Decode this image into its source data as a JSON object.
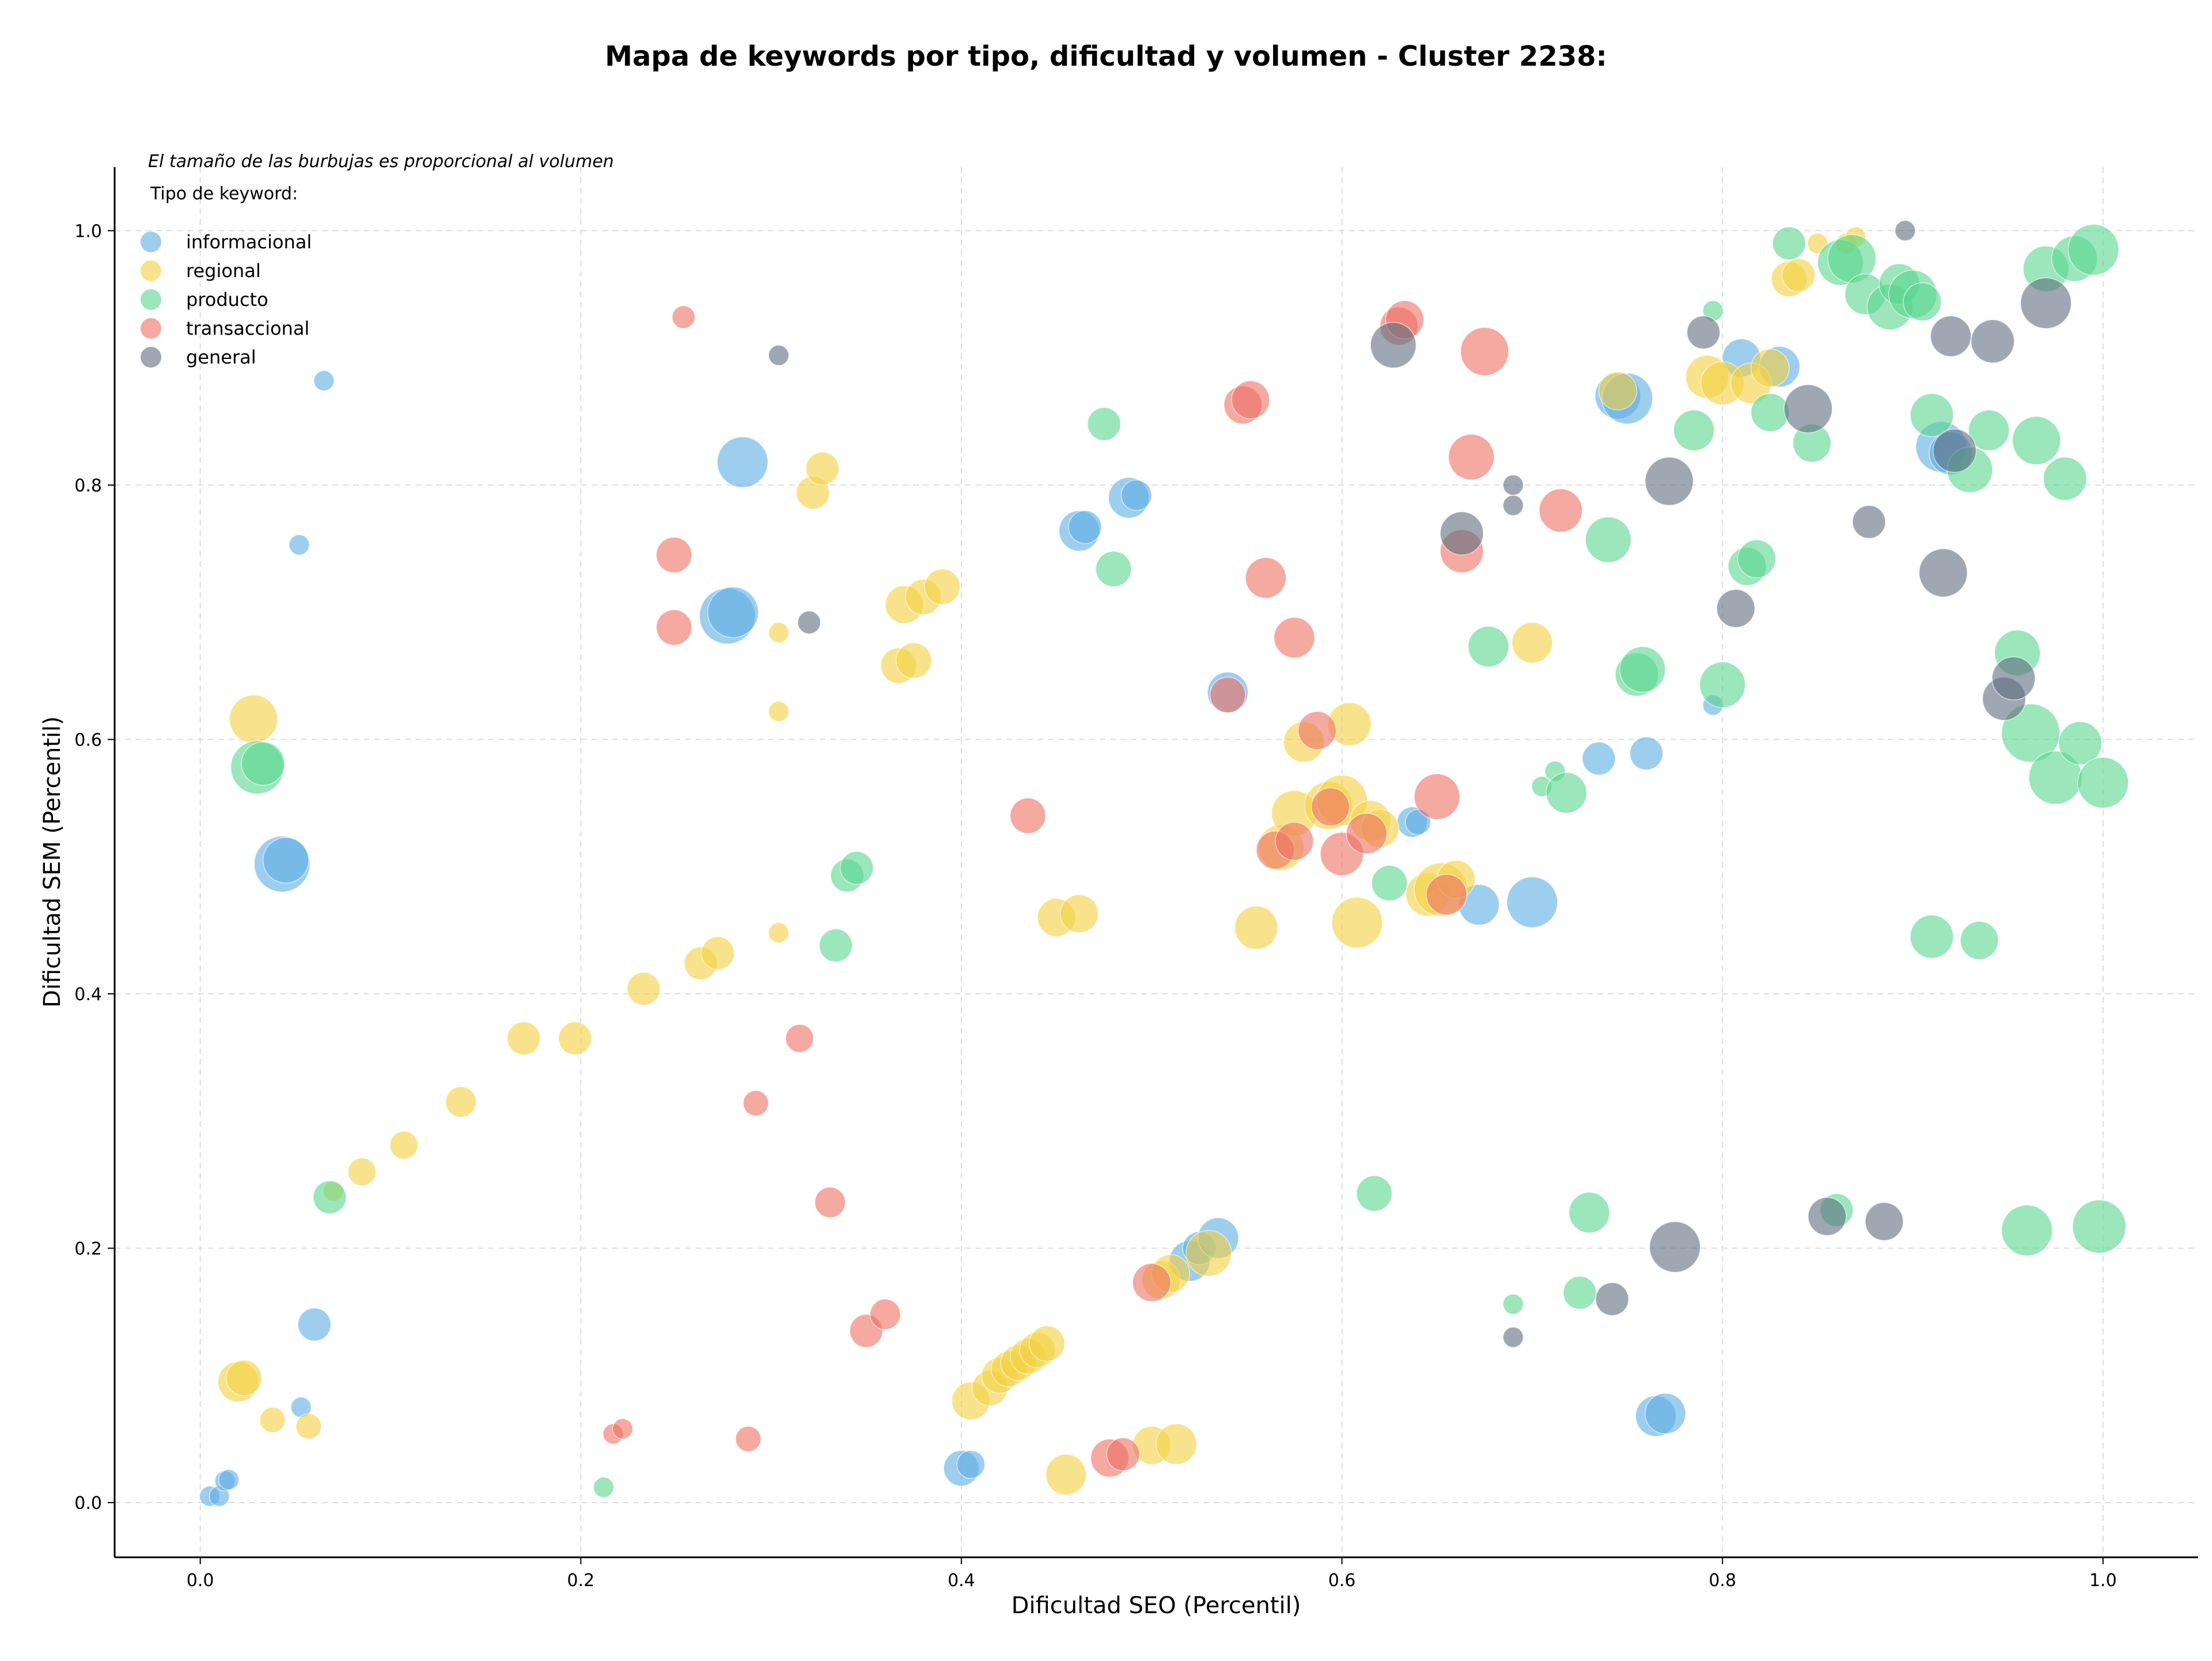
{
  "chart_data": {
    "type": "scatter",
    "title": "Mapa de keywords por tipo, dificultad y volumen - Cluster 2238:",
    "xlabel": "Dificultad SEO (Percentil)",
    "ylabel": "Dificultad SEM (Percentil)",
    "xlim": [
      -0.045,
      1.05
    ],
    "ylim": [
      -0.043,
      1.05
    ],
    "xticks": [
      0.0,
      0.2,
      0.4,
      0.6,
      0.8,
      1.0
    ],
    "yticks": [
      0.0,
      0.2,
      0.4,
      0.6,
      0.8,
      1.0
    ],
    "xtick_labels": [
      "0.0",
      "0.2",
      "0.4",
      "0.6",
      "0.8",
      "1.0"
    ],
    "ytick_labels": [
      "0.0",
      "0.2",
      "0.4",
      "0.6",
      "0.8",
      "1.0"
    ],
    "grid": true,
    "size_note": "El tamaño de las burbujas es proporcional al volumen",
    "legend_title": "Tipo de keyword:",
    "legend_position": "top-left",
    "series": [
      {
        "name": "informacional",
        "color": "#5DADE2",
        "points": [
          [
            0.005,
            0.005,
            8
          ],
          [
            0.01,
            0.005,
            8
          ],
          [
            0.013,
            0.017,
            8
          ],
          [
            0.015,
            0.018,
            8
          ],
          [
            0.043,
            0.502,
            22
          ],
          [
            0.045,
            0.505,
            18
          ],
          [
            0.053,
            0.075,
            8
          ],
          [
            0.052,
            0.753,
            8
          ],
          [
            0.06,
            0.14,
            13
          ],
          [
            0.065,
            0.882,
            8
          ],
          [
            0.277,
            0.697,
            22
          ],
          [
            0.28,
            0.7,
            20
          ],
          [
            0.285,
            0.818,
            20
          ],
          [
            0.4,
            0.027,
            14
          ],
          [
            0.405,
            0.03,
            11
          ],
          [
            0.462,
            0.764,
            16
          ],
          [
            0.465,
            0.767,
            13
          ],
          [
            0.488,
            0.79,
            16
          ],
          [
            0.492,
            0.792,
            12
          ],
          [
            0.52,
            0.19,
            16
          ],
          [
            0.525,
            0.2,
            13
          ],
          [
            0.535,
            0.208,
            16
          ],
          [
            0.54,
            0.637,
            16
          ],
          [
            0.637,
            0.535,
            12
          ],
          [
            0.64,
            0.535,
            10
          ],
          [
            0.672,
            0.47,
            16
          ],
          [
            0.7,
            0.472,
            20
          ],
          [
            0.735,
            0.585,
            13
          ],
          [
            0.745,
            0.87,
            18
          ],
          [
            0.75,
            0.868,
            20
          ],
          [
            0.76,
            0.589,
            13
          ],
          [
            0.765,
            0.068,
            16
          ],
          [
            0.77,
            0.07,
            16
          ],
          [
            0.795,
            0.627,
            8
          ],
          [
            0.81,
            0.9,
            15
          ],
          [
            0.83,
            0.893,
            16
          ],
          [
            0.915,
            0.83,
            20
          ],
          [
            0.92,
            0.825,
            17
          ]
        ]
      },
      {
        "name": "regional",
        "color": "#F4D03F",
        "points": [
          [
            0.02,
            0.095,
            16
          ],
          [
            0.023,
            0.098,
            14
          ],
          [
            0.028,
            0.616,
            19
          ],
          [
            0.038,
            0.065,
            10
          ],
          [
            0.057,
            0.06,
            10
          ],
          [
            0.07,
            0.245,
            8
          ],
          [
            0.085,
            0.26,
            11
          ],
          [
            0.107,
            0.281,
            11
          ],
          [
            0.137,
            0.315,
            12
          ],
          [
            0.17,
            0.365,
            13
          ],
          [
            0.197,
            0.365,
            13
          ],
          [
            0.233,
            0.404,
            13
          ],
          [
            0.263,
            0.424,
            13
          ],
          [
            0.272,
            0.432,
            13
          ],
          [
            0.304,
            0.448,
            8
          ],
          [
            0.304,
            0.622,
            8
          ],
          [
            0.304,
            0.684,
            8
          ],
          [
            0.322,
            0.794,
            13
          ],
          [
            0.327,
            0.813,
            13
          ],
          [
            0.367,
            0.658,
            14
          ],
          [
            0.37,
            0.706,
            15
          ],
          [
            0.375,
            0.662,
            14
          ],
          [
            0.38,
            0.712,
            14
          ],
          [
            0.39,
            0.72,
            14
          ],
          [
            0.405,
            0.08,
            15
          ],
          [
            0.415,
            0.09,
            14
          ],
          [
            0.42,
            0.1,
            14
          ],
          [
            0.425,
            0.105,
            14
          ],
          [
            0.43,
            0.11,
            14
          ],
          [
            0.435,
            0.115,
            14
          ],
          [
            0.44,
            0.12,
            14
          ],
          [
            0.445,
            0.125,
            14
          ],
          [
            0.45,
            0.46,
            15
          ],
          [
            0.455,
            0.022,
            16
          ],
          [
            0.462,
            0.463,
            15
          ],
          [
            0.5,
            0.045,
            15
          ],
          [
            0.505,
            0.175,
            15
          ],
          [
            0.51,
            0.18,
            15
          ],
          [
            0.513,
            0.046,
            16
          ],
          [
            0.53,
            0.196,
            18
          ],
          [
            0.555,
            0.452,
            17
          ],
          [
            0.568,
            0.515,
            18
          ],
          [
            0.575,
            0.542,
            18
          ],
          [
            0.58,
            0.598,
            16
          ],
          [
            0.593,
            0.548,
            19
          ],
          [
            0.6,
            0.552,
            20
          ],
          [
            0.604,
            0.612,
            17
          ],
          [
            0.608,
            0.456,
            20
          ],
          [
            0.615,
            0.536,
            16
          ],
          [
            0.62,
            0.53,
            15
          ],
          [
            0.645,
            0.478,
            17
          ],
          [
            0.652,
            0.482,
            21
          ],
          [
            0.66,
            0.49,
            15
          ],
          [
            0.7,
            0.676,
            16
          ],
          [
            0.745,
            0.874,
            15
          ],
          [
            0.792,
            0.885,
            17
          ],
          [
            0.8,
            0.88,
            17
          ],
          [
            0.815,
            0.88,
            16
          ],
          [
            0.825,
            0.892,
            15
          ],
          [
            0.835,
            0.962,
            14
          ],
          [
            0.84,
            0.965,
            13
          ],
          [
            0.85,
            0.99,
            8
          ],
          [
            0.865,
            0.99,
            8
          ],
          [
            0.87,
            0.995,
            8
          ]
        ]
      },
      {
        "name": "producto",
        "color": "#58D68D",
        "points": [
          [
            0.03,
            0.578,
            21
          ],
          [
            0.033,
            0.581,
            17
          ],
          [
            0.068,
            0.24,
            13
          ],
          [
            0.212,
            0.012,
            8
          ],
          [
            0.334,
            0.438,
            13
          ],
          [
            0.34,
            0.493,
            13
          ],
          [
            0.345,
            0.499,
            13
          ],
          [
            0.475,
            0.848,
            13
          ],
          [
            0.48,
            0.734,
            14
          ],
          [
            0.617,
            0.243,
            14
          ],
          [
            0.625,
            0.487,
            14
          ],
          [
            0.677,
            0.673,
            16
          ],
          [
            0.69,
            0.156,
            8
          ],
          [
            0.705,
            0.563,
            8
          ],
          [
            0.712,
            0.575,
            8
          ],
          [
            0.718,
            0.558,
            16
          ],
          [
            0.725,
            0.165,
            13
          ],
          [
            0.73,
            0.228,
            16
          ],
          [
            0.74,
            0.757,
            18
          ],
          [
            0.755,
            0.651,
            17
          ],
          [
            0.758,
            0.655,
            18
          ],
          [
            0.785,
            0.843,
            16
          ],
          [
            0.795,
            0.937,
            8
          ],
          [
            0.8,
            0.643,
            18
          ],
          [
            0.813,
            0.736,
            15
          ],
          [
            0.818,
            0.742,
            15
          ],
          [
            0.825,
            0.857,
            15
          ],
          [
            0.835,
            0.99,
            13
          ],
          [
            0.847,
            0.833,
            15
          ],
          [
            0.86,
            0.23,
            13
          ],
          [
            0.862,
            0.975,
            18
          ],
          [
            0.868,
            0.978,
            19
          ],
          [
            0.875,
            0.95,
            16
          ],
          [
            0.888,
            0.94,
            18
          ],
          [
            0.893,
            0.958,
            16
          ],
          [
            0.9,
            0.95,
            19
          ],
          [
            0.905,
            0.944,
            15
          ],
          [
            0.91,
            0.445,
            17
          ],
          [
            0.91,
            0.855,
            17
          ],
          [
            0.93,
            0.812,
            18
          ],
          [
            0.935,
            0.442,
            15
          ],
          [
            0.94,
            0.843,
            16
          ],
          [
            0.955,
            0.668,
            18
          ],
          [
            0.962,
            0.605,
            23
          ],
          [
            0.965,
            0.835,
            19
          ],
          [
            0.97,
            0.97,
            18
          ],
          [
            0.975,
            0.57,
            21
          ],
          [
            0.98,
            0.805,
            17
          ],
          [
            0.985,
            0.978,
            18
          ],
          [
            0.988,
            0.597,
            17
          ],
          [
            0.995,
            0.985,
            20
          ],
          [
            0.998,
            0.217,
            21
          ],
          [
            1.0,
            0.566,
            20
          ],
          [
            0.96,
            0.214,
            20
          ]
        ]
      },
      {
        "name": "transaccional",
        "color": "#EC7063",
        "points": [
          [
            0.217,
            0.054,
            8
          ],
          [
            0.222,
            0.058,
            8
          ],
          [
            0.254,
            0.932,
            9
          ],
          [
            0.249,
            0.745,
            14
          ],
          [
            0.249,
            0.688,
            14
          ],
          [
            0.288,
            0.05,
            10
          ],
          [
            0.292,
            0.314,
            10
          ],
          [
            0.315,
            0.365,
            11
          ],
          [
            0.331,
            0.236,
            12
          ],
          [
            0.35,
            0.135,
            13
          ],
          [
            0.36,
            0.148,
            12
          ],
          [
            0.435,
            0.54,
            14
          ],
          [
            0.478,
            0.035,
            15
          ],
          [
            0.485,
            0.038,
            13
          ],
          [
            0.5,
            0.173,
            15
          ],
          [
            0.548,
            0.863,
            15
          ],
          [
            0.552,
            0.867,
            15
          ],
          [
            0.56,
            0.727,
            16
          ],
          [
            0.575,
            0.68,
            16
          ],
          [
            0.54,
            0.635,
            14
          ],
          [
            0.565,
            0.513,
            15
          ],
          [
            0.575,
            0.52,
            15
          ],
          [
            0.587,
            0.607,
            15
          ],
          [
            0.594,
            0.547,
            15
          ],
          [
            0.6,
            0.51,
            17
          ],
          [
            0.613,
            0.526,
            16
          ],
          [
            0.63,
            0.925,
            15
          ],
          [
            0.633,
            0.93,
            15
          ],
          [
            0.65,
            0.555,
            18
          ],
          [
            0.655,
            0.478,
            16
          ],
          [
            0.663,
            0.748,
            17
          ],
          [
            0.668,
            0.822,
            18
          ],
          [
            0.675,
            0.905,
            19
          ],
          [
            0.715,
            0.78,
            17
          ]
        ]
      },
      {
        "name": "general",
        "color": "#5D6D7E",
        "points": [
          [
            0.304,
            0.902,
            8
          ],
          [
            0.32,
            0.692,
            9
          ],
          [
            0.627,
            0.91,
            18
          ],
          [
            0.663,
            0.762,
            17
          ],
          [
            0.69,
            0.13,
            8
          ],
          [
            0.69,
            0.784,
            8
          ],
          [
            0.69,
            0.8,
            8
          ],
          [
            0.742,
            0.16,
            13
          ],
          [
            0.772,
            0.803,
            19
          ],
          [
            0.775,
            0.201,
            20
          ],
          [
            0.79,
            0.92,
            13
          ],
          [
            0.807,
            0.703,
            15
          ],
          [
            0.845,
            0.86,
            19
          ],
          [
            0.855,
            0.225,
            15
          ],
          [
            0.877,
            0.771,
            13
          ],
          [
            0.885,
            0.221,
            15
          ],
          [
            0.896,
            1.0,
            8
          ],
          [
            0.916,
            0.731,
            19
          ],
          [
            0.92,
            0.917,
            16
          ],
          [
            0.922,
            0.827,
            17
          ],
          [
            0.942,
            0.913,
            17
          ],
          [
            0.948,
            0.632,
            17
          ],
          [
            0.953,
            0.648,
            17
          ],
          [
            0.97,
            0.943,
            20
          ]
        ]
      }
    ]
  }
}
